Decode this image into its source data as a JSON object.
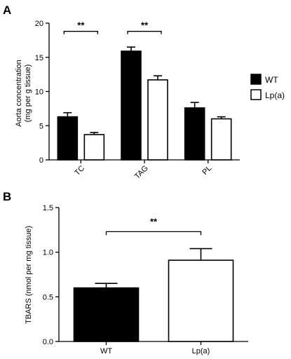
{
  "chart_data": [
    {
      "panel": "A",
      "type": "bar",
      "categories": [
        "TC",
        "TAG",
        "PL"
      ],
      "ylabel_line1": "Aorta concentration",
      "ylabel_line2": "(mg per g tissue)",
      "ylim": [
        0,
        20
      ],
      "yticks": [
        0,
        5,
        10,
        15,
        20
      ],
      "series": [
        {
          "name": "WT",
          "fill": "#000000",
          "values": [
            6.3,
            15.9,
            7.6
          ],
          "errors": [
            0.6,
            0.6,
            0.8
          ]
        },
        {
          "name": "Lp(a)",
          "fill": "#ffffff",
          "values": [
            3.7,
            11.7,
            6.0
          ],
          "errors": [
            0.3,
            0.6,
            0.3
          ]
        }
      ],
      "significance": [
        {
          "category": "TC",
          "label": "**"
        },
        {
          "category": "TAG",
          "label": "**"
        }
      ],
      "legend_placement": "right"
    },
    {
      "panel": "B",
      "type": "bar",
      "categories": [
        "WT",
        "Lp(a)"
      ],
      "ylabel": "TBARS (nmol per mg tissue)",
      "ylim": [
        0,
        1.5
      ],
      "yticks": [
        "0.0",
        "0.5",
        "1.0",
        "1.5"
      ],
      "series": [
        {
          "fills": [
            "#000000",
            "#ffffff"
          ],
          "values": [
            0.6,
            0.91
          ],
          "errors": [
            0.05,
            0.13
          ]
        }
      ],
      "significance": [
        {
          "between": [
            "WT",
            "Lp(a)"
          ],
          "label": "**"
        }
      ]
    }
  ]
}
